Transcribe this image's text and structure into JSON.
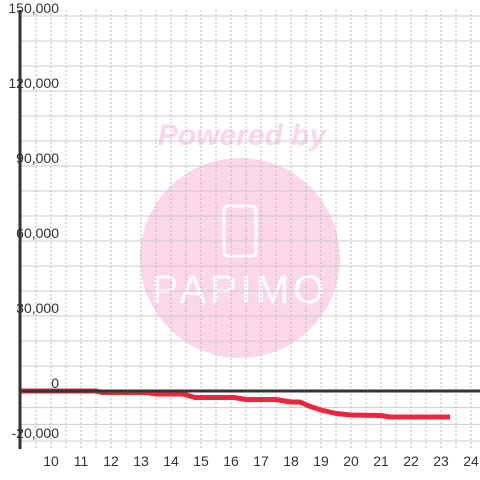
{
  "chart_data": {
    "type": "line",
    "watermark": {
      "line1": "Powered by",
      "line2": "PAPIMO"
    },
    "x": [
      9,
      11.5,
      11.7,
      13.2,
      13.5,
      14.4,
      14.8,
      16.1,
      16.5,
      17.5,
      18.0,
      18.3,
      18.6,
      19.0,
      19.5,
      20.0,
      21.0,
      21.3,
      23.3
    ],
    "series": [
      {
        "color": "#e8283c",
        "values": [
          0,
          0,
          -600,
          -600,
          -1200,
          -1200,
          -2600,
          -2600,
          -3400,
          -3400,
          -4400,
          -4400,
          -6000,
          -7600,
          -9000,
          -9600,
          -9800,
          -10400,
          -10400
        ]
      }
    ],
    "xlim": [
      9,
      24.3
    ],
    "xticks": [
      10,
      11,
      12,
      13,
      14,
      15,
      16,
      17,
      18,
      19,
      20,
      21,
      22,
      23,
      24
    ],
    "ylim": [
      -20000,
      150000
    ],
    "yticks": [
      {
        "value": -20000,
        "label": "-20,000"
      },
      0,
      {
        "value": 30000,
        "label": "30,000"
      },
      {
        "value": 60000,
        "label": "60,000"
      },
      {
        "value": 90000,
        "label": "90,000"
      },
      {
        "value": 120000,
        "label": "120,000"
      },
      {
        "value": 150000,
        "label": "150,000"
      }
    ],
    "grid": true,
    "x_minor_divisions": 2,
    "y_minor_divisions": 3
  }
}
